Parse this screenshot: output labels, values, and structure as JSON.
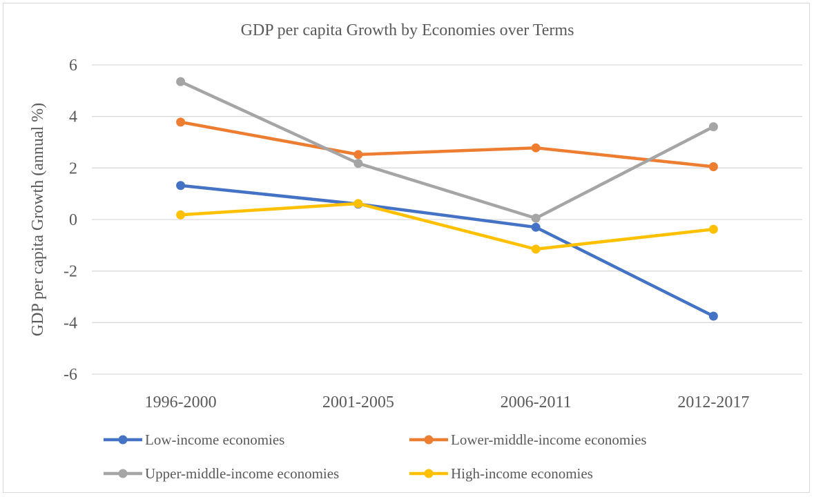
{
  "chart_data": {
    "type": "line",
    "title": "GDP per capita Growth by Economies over Terms",
    "xlabel": "",
    "ylabel": "GDP per capita Growth (annual %)",
    "categories": [
      "1996-2000",
      "2001-2005",
      "2006-2011",
      "2012-2017"
    ],
    "ylim": [
      -6,
      6
    ],
    "yticks": [
      6,
      4,
      2,
      0,
      -2,
      -4,
      -6
    ],
    "ytick_labels": [
      "6",
      "4",
      "2",
      "0",
      "-2",
      "-4",
      "-6"
    ],
    "grid": true,
    "legend_position": "bottom",
    "series": [
      {
        "name": "Low-income economies",
        "color": "#4472c4",
        "values": [
          1.32,
          0.6,
          -0.3,
          -3.75
        ]
      },
      {
        "name": "Lower-middle-income economies",
        "color": "#ed7d31",
        "values": [
          3.78,
          2.52,
          2.78,
          2.05
        ]
      },
      {
        "name": "Upper-middle-income economies",
        "color": "#a5a5a5",
        "values": [
          5.35,
          2.18,
          0.05,
          3.6
        ]
      },
      {
        "name": "High-income economies",
        "color": "#ffc000",
        "values": [
          0.18,
          0.62,
          -1.15,
          -0.38
        ]
      }
    ]
  }
}
